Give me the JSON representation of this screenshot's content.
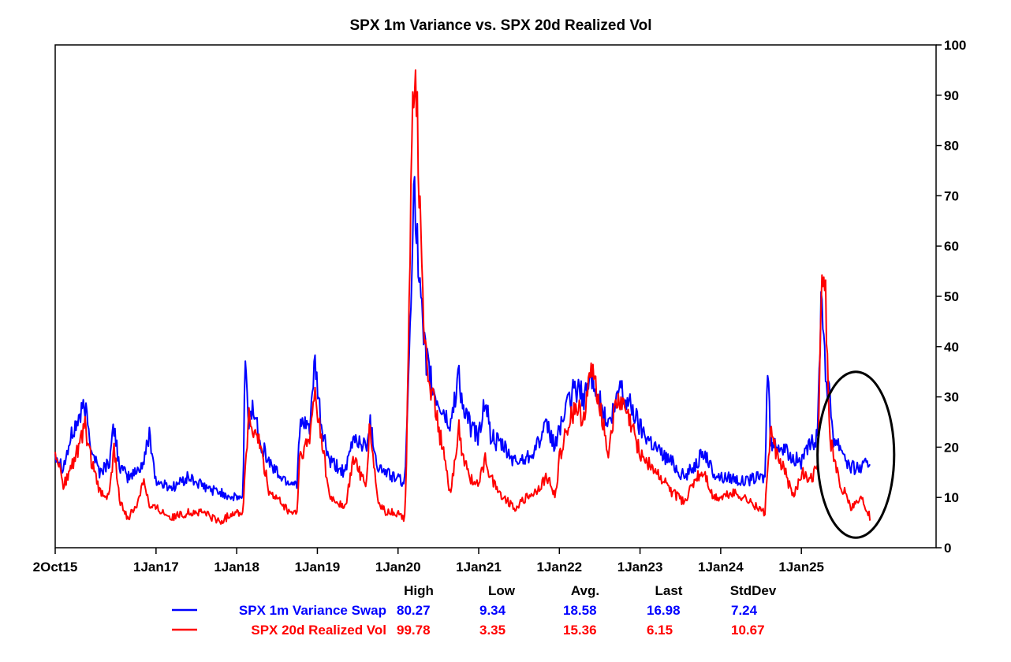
{
  "chart_data": {
    "type": "line",
    "title": "SPX 1m Variance vs. SPX 20d Realized Vol",
    "x_tick_labels": [
      "2Oct15",
      "1Jan17",
      "1Jan18",
      "1Jan19",
      "1Jan20",
      "1Jan21",
      "1Jan22",
      "1Jan23",
      "1Jan24",
      "1Jan25"
    ],
    "x_ticks": [
      2015.75,
      2017.0,
      2018.0,
      2019.0,
      2020.0,
      2021.0,
      2022.0,
      2023.0,
      2024.0,
      2025.0
    ],
    "xlim": [
      2015.75,
      2026.67
    ],
    "ylim": [
      0,
      100
    ],
    "y_ticks": [
      0,
      10,
      20,
      30,
      40,
      50,
      60,
      70,
      80,
      90,
      100
    ],
    "y_axis_side": "right",
    "series": [
      {
        "name": "SPX 1m Variance Swap",
        "color": "#0000ff",
        "points": [
          [
            2015.75,
            19
          ],
          [
            2015.85,
            16
          ],
          [
            2015.95,
            22
          ],
          [
            2016.05,
            26
          ],
          [
            2016.12,
            28
          ],
          [
            2016.2,
            20
          ],
          [
            2016.3,
            15
          ],
          [
            2016.42,
            17
          ],
          [
            2016.48,
            24
          ],
          [
            2016.55,
            16
          ],
          [
            2016.65,
            14
          ],
          [
            2016.75,
            15
          ],
          [
            2016.85,
            17
          ],
          [
            2016.92,
            23
          ],
          [
            2017.0,
            13
          ],
          [
            2017.2,
            12
          ],
          [
            2017.4,
            14
          ],
          [
            2017.6,
            12
          ],
          [
            2017.8,
            11
          ],
          [
            2017.95,
            10
          ],
          [
            2018.08,
            10
          ],
          [
            2018.1,
            37
          ],
          [
            2018.15,
            25
          ],
          [
            2018.2,
            28
          ],
          [
            2018.3,
            21
          ],
          [
            2018.4,
            17
          ],
          [
            2018.55,
            14
          ],
          [
            2018.65,
            13
          ],
          [
            2018.75,
            13
          ],
          [
            2018.78,
            24
          ],
          [
            2018.9,
            24
          ],
          [
            2018.97,
            36
          ],
          [
            2019.05,
            24
          ],
          [
            2019.15,
            17
          ],
          [
            2019.35,
            15
          ],
          [
            2019.45,
            22
          ],
          [
            2019.6,
            20
          ],
          [
            2019.65,
            25
          ],
          [
            2019.75,
            16
          ],
          [
            2019.85,
            15
          ],
          [
            2019.95,
            14
          ],
          [
            2020.08,
            13
          ],
          [
            2020.1,
            18
          ],
          [
            2020.15,
            45
          ],
          [
            2020.2,
            76
          ],
          [
            2020.25,
            55
          ],
          [
            2020.32,
            40
          ],
          [
            2020.45,
            30
          ],
          [
            2020.55,
            27
          ],
          [
            2020.65,
            24
          ],
          [
            2020.75,
            35
          ],
          [
            2020.8,
            28
          ],
          [
            2020.9,
            24
          ],
          [
            2021.0,
            22
          ],
          [
            2021.08,
            30
          ],
          [
            2021.15,
            22
          ],
          [
            2021.3,
            20
          ],
          [
            2021.45,
            17
          ],
          [
            2021.6,
            18
          ],
          [
            2021.7,
            20
          ],
          [
            2021.85,
            24
          ],
          [
            2021.95,
            20
          ],
          [
            2022.0,
            24
          ],
          [
            2022.1,
            28
          ],
          [
            2022.2,
            32
          ],
          [
            2022.3,
            30
          ],
          [
            2022.4,
            34
          ],
          [
            2022.45,
            33
          ],
          [
            2022.5,
            29
          ],
          [
            2022.6,
            24
          ],
          [
            2022.7,
            28
          ],
          [
            2022.75,
            33
          ],
          [
            2022.8,
            30
          ],
          [
            2022.9,
            28
          ],
          [
            2023.0,
            24
          ],
          [
            2023.15,
            21
          ],
          [
            2023.25,
            19
          ],
          [
            2023.4,
            17
          ],
          [
            2023.55,
            14
          ],
          [
            2023.7,
            17
          ],
          [
            2023.8,
            19
          ],
          [
            2023.9,
            15
          ],
          [
            2024.0,
            14
          ],
          [
            2024.15,
            14
          ],
          [
            2024.3,
            13
          ],
          [
            2024.45,
            14
          ],
          [
            2024.55,
            14
          ],
          [
            2024.58,
            37
          ],
          [
            2024.62,
            20
          ],
          [
            2024.7,
            21
          ],
          [
            2024.8,
            19
          ],
          [
            2024.9,
            18
          ],
          [
            2025.0,
            17
          ],
          [
            2025.1,
            20
          ],
          [
            2025.2,
            22
          ],
          [
            2025.25,
            53
          ],
          [
            2025.3,
            35
          ],
          [
            2025.35,
            30
          ],
          [
            2025.4,
            22
          ],
          [
            2025.5,
            20
          ],
          [
            2025.55,
            18
          ],
          [
            2025.6,
            16
          ],
          [
            2025.75,
            16
          ],
          [
            2025.85,
            17
          ]
        ]
      },
      {
        "name": "SPX 20d Realized Vol",
        "color": "#ff0000",
        "points": [
          [
            2015.75,
            20
          ],
          [
            2015.85,
            12
          ],
          [
            2015.95,
            16
          ],
          [
            2016.05,
            20
          ],
          [
            2016.12,
            24
          ],
          [
            2016.2,
            17
          ],
          [
            2016.3,
            11
          ],
          [
            2016.42,
            10
          ],
          [
            2016.48,
            20
          ],
          [
            2016.55,
            9
          ],
          [
            2016.65,
            6
          ],
          [
            2016.75,
            8
          ],
          [
            2016.85,
            14
          ],
          [
            2016.92,
            8
          ],
          [
            2017.0,
            8
          ],
          [
            2017.2,
            6
          ],
          [
            2017.4,
            7
          ],
          [
            2017.6,
            7
          ],
          [
            2017.8,
            5
          ],
          [
            2017.95,
            7
          ],
          [
            2018.08,
            7
          ],
          [
            2018.1,
            15
          ],
          [
            2018.15,
            26
          ],
          [
            2018.2,
            23
          ],
          [
            2018.3,
            20
          ],
          [
            2018.4,
            11
          ],
          [
            2018.55,
            9
          ],
          [
            2018.65,
            7
          ],
          [
            2018.75,
            7
          ],
          [
            2018.78,
            18
          ],
          [
            2018.9,
            21
          ],
          [
            2018.97,
            31
          ],
          [
            2019.05,
            22
          ],
          [
            2019.15,
            10
          ],
          [
            2019.35,
            8
          ],
          [
            2019.45,
            18
          ],
          [
            2019.6,
            12
          ],
          [
            2019.65,
            24
          ],
          [
            2019.75,
            9
          ],
          [
            2019.85,
            7
          ],
          [
            2019.95,
            7
          ],
          [
            2020.08,
            6
          ],
          [
            2020.1,
            14
          ],
          [
            2020.15,
            60
          ],
          [
            2020.2,
            100
          ],
          [
            2020.25,
            80
          ],
          [
            2020.32,
            40
          ],
          [
            2020.45,
            28
          ],
          [
            2020.55,
            20
          ],
          [
            2020.65,
            10
          ],
          [
            2020.75,
            24
          ],
          [
            2020.8,
            18
          ],
          [
            2020.9,
            14
          ],
          [
            2021.0,
            12
          ],
          [
            2021.08,
            18
          ],
          [
            2021.15,
            14
          ],
          [
            2021.3,
            10
          ],
          [
            2021.45,
            8
          ],
          [
            2021.6,
            10
          ],
          [
            2021.7,
            11
          ],
          [
            2021.85,
            14
          ],
          [
            2021.95,
            10
          ],
          [
            2022.0,
            18
          ],
          [
            2022.1,
            24
          ],
          [
            2022.2,
            28
          ],
          [
            2022.3,
            26
          ],
          [
            2022.4,
            35
          ],
          [
            2022.45,
            33
          ],
          [
            2022.5,
            29
          ],
          [
            2022.6,
            19
          ],
          [
            2022.7,
            28
          ],
          [
            2022.75,
            29
          ],
          [
            2022.8,
            28
          ],
          [
            2022.9,
            24
          ],
          [
            2023.0,
            19
          ],
          [
            2023.15,
            16
          ],
          [
            2023.25,
            14
          ],
          [
            2023.4,
            11
          ],
          [
            2023.55,
            9
          ],
          [
            2023.7,
            14
          ],
          [
            2023.8,
            15
          ],
          [
            2023.9,
            10
          ],
          [
            2024.0,
            10
          ],
          [
            2024.15,
            11
          ],
          [
            2024.3,
            10
          ],
          [
            2024.45,
            8
          ],
          [
            2024.55,
            7
          ],
          [
            2024.58,
            16
          ],
          [
            2024.62,
            23
          ],
          [
            2024.7,
            18
          ],
          [
            2024.8,
            15
          ],
          [
            2024.9,
            10
          ],
          [
            2025.0,
            15
          ],
          [
            2025.1,
            13
          ],
          [
            2025.2,
            16
          ],
          [
            2025.25,
            50
          ],
          [
            2025.3,
            51
          ],
          [
            2025.35,
            22
          ],
          [
            2025.4,
            18
          ],
          [
            2025.5,
            11
          ],
          [
            2025.55,
            12
          ],
          [
            2025.6,
            8
          ],
          [
            2025.75,
            10
          ],
          [
            2025.85,
            6
          ]
        ]
      }
    ],
    "stats_table": {
      "headers": [
        "High",
        "Low",
        "Avg.",
        "Last",
        "StdDev"
      ],
      "rows": [
        {
          "name": "SPX 1m Variance Swap",
          "color": "#0000ff",
          "values": [
            "80.27",
            "9.34",
            "18.58",
            "16.98",
            "7.24"
          ]
        },
        {
          "name": "SPX 20d Realized Vol",
          "color": "#ff0000",
          "values": [
            "99.78",
            "3.35",
            "15.36",
            "6.15",
            "10.67"
          ]
        }
      ]
    },
    "annotation": {
      "type": "ellipse",
      "color": "#000000",
      "x_range": [
        2025.2,
        2026.15
      ],
      "y_range": [
        2,
        35
      ]
    }
  }
}
